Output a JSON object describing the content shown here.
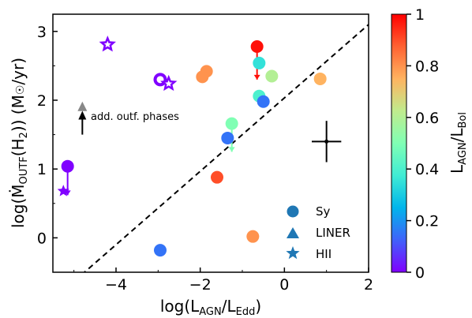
{
  "chart_data": {
    "type": "scatter",
    "xlabel": "log(L_AGN/L_Edd)",
    "ylabel": "log(Ṁ_OUTF(H2)) (M☉/yr)",
    "colorbar_label": "L_AGN/L_Bol",
    "xlim": [
      -5.5,
      2
    ],
    "ylim": [
      -0.5,
      3.25
    ],
    "xticks": [
      "−4",
      "−2",
      "0",
      "2"
    ],
    "yticks": [
      "0",
      "1",
      "2",
      "3"
    ],
    "colorbar_ticks": [
      "0",
      "0.2",
      "0.4",
      "0.6",
      "0.8",
      "1"
    ],
    "colormap": "rainbow",
    "legend": {
      "placement": "lower-right",
      "entries": [
        {
          "label": "Sy",
          "marker": "circle"
        },
        {
          "label": "LINER",
          "marker": "triangle"
        },
        {
          "label": "HII",
          "marker": "star"
        }
      ],
      "marker_color": "#1f77b4"
    },
    "reference_line": {
      "style": "dashed",
      "points": [
        [
          -5.5,
          -0.9
        ],
        [
          2,
          3.1
        ]
      ]
    },
    "error_cross": {
      "x": 1.0,
      "y": 1.4,
      "xerr": 0.35,
      "yerr": 0.3
    },
    "annotation": {
      "text": "add. outf. phases",
      "gray_triangle": {
        "x": -4.8,
        "y": 1.9
      },
      "arrow": {
        "x": -4.8,
        "y_from": 1.5,
        "y_to": 1.8
      }
    },
    "points": [
      {
        "x": -5.15,
        "y": 1.04,
        "c": 0.0,
        "marker": "circle"
      },
      {
        "x": -5.25,
        "y": 0.68,
        "c": 0.0,
        "marker": "star"
      },
      {
        "x": -4.2,
        "y": 2.81,
        "c": 0.0,
        "marker": "star"
      },
      {
        "x": -2.95,
        "y": 2.3,
        "c": 0.0,
        "marker": "circle"
      },
      {
        "x": -2.75,
        "y": 2.24,
        "c": 0.0,
        "marker": "star"
      },
      {
        "x": -2.95,
        "y": -0.18,
        "c": 0.15,
        "marker": "circle"
      },
      {
        "x": -1.85,
        "y": 2.42,
        "c": 0.8,
        "marker": "circle"
      },
      {
        "x": -1.95,
        "y": 2.34,
        "c": 0.8,
        "marker": "circle"
      },
      {
        "x": -1.6,
        "y": 0.88,
        "c": 0.9,
        "marker": "circle"
      },
      {
        "x": -1.35,
        "y": 1.45,
        "c": 0.15,
        "marker": "circle"
      },
      {
        "x": -1.25,
        "y": 1.66,
        "c": 0.5,
        "marker": "circle"
      },
      {
        "x": -0.75,
        "y": 0.02,
        "c": 0.8,
        "marker": "circle"
      },
      {
        "x": -0.65,
        "y": 2.78,
        "c": 0.98,
        "marker": "circle"
      },
      {
        "x": -0.6,
        "y": 2.54,
        "c": 0.35,
        "marker": "circle"
      },
      {
        "x": -0.6,
        "y": 2.06,
        "c": 0.4,
        "marker": "circle"
      },
      {
        "x": -0.5,
        "y": 1.98,
        "c": 0.15,
        "marker": "circle"
      },
      {
        "x": -0.3,
        "y": 2.35,
        "c": 0.6,
        "marker": "circle"
      },
      {
        "x": 0.85,
        "y": 2.31,
        "c": 0.75,
        "marker": "circle"
      }
    ],
    "vertical_links": [
      {
        "x": -5.15,
        "y_from": 1.04,
        "y_to": 0.62,
        "c": 0.0
      },
      {
        "x": -0.65,
        "y_from": 2.78,
        "y_to": 2.3,
        "c": 0.98
      },
      {
        "x": -1.25,
        "y_from": 1.66,
        "y_to": 1.25,
        "c": 0.5
      },
      {
        "x": -1.35,
        "y_from": 1.45,
        "y_to": 1.42,
        "c": 0.15
      }
    ]
  }
}
